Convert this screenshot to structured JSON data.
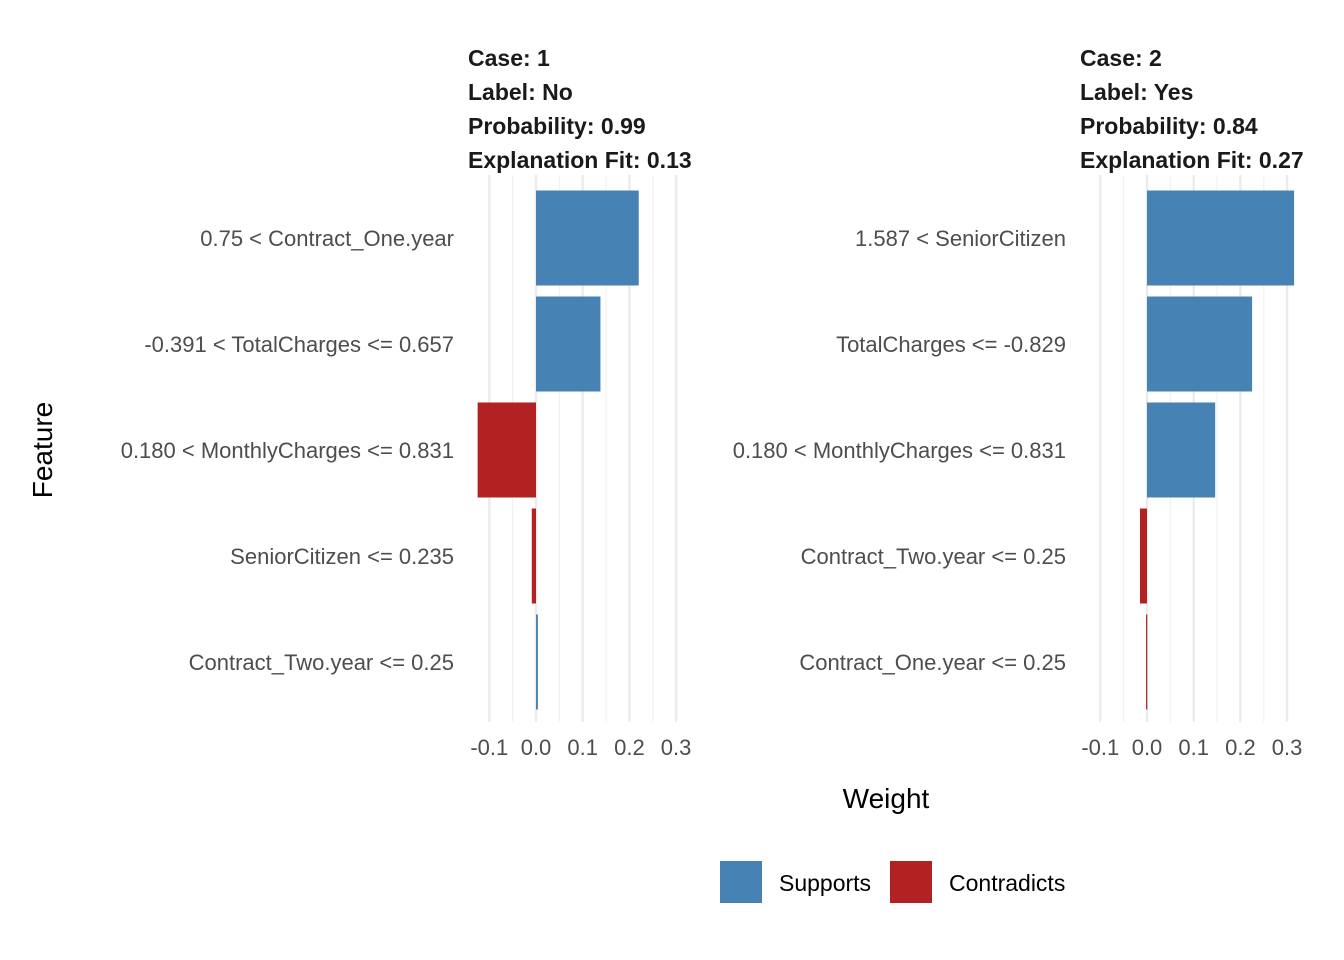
{
  "chart_data": {
    "type": "bar",
    "orientation": "horizontal",
    "ylabel": "Feature",
    "xlabel": "Weight",
    "xlim": [
      -0.12,
      0.32
    ],
    "xticks": [
      "-0.1",
      "0.0",
      "0.1",
      "0.2",
      "0.3"
    ],
    "grid": true,
    "legend": {
      "placement": "bottom",
      "entries": [
        {
          "label": "Supports",
          "color": "#4682B4"
        },
        {
          "label": "Contradicts",
          "color": "#B22222"
        }
      ]
    },
    "panels": [
      {
        "title": [
          "Case: 1",
          "Label: No",
          "Probability: 0.99",
          "Explanation Fit: 0.13"
        ],
        "bars": [
          {
            "feature": "0.75 < Contract_One.year",
            "weight": 0.22,
            "type": "Supports"
          },
          {
            "feature": "-0.391 < TotalCharges <= 0.657",
            "weight": 0.138,
            "type": "Supports"
          },
          {
            "feature": "0.180 < MonthlyCharges <= 0.831",
            "weight": -0.125,
            "type": "Contradicts"
          },
          {
            "feature": "SeniorCitizen <= 0.235",
            "weight": -0.009,
            "type": "Contradicts"
          },
          {
            "feature": "Contract_Two.year <= 0.25",
            "weight": 0.004,
            "type": "Supports"
          }
        ]
      },
      {
        "title": [
          "Case: 2",
          "Label: Yes",
          "Probability: 0.84",
          "Explanation Fit: 0.27"
        ],
        "bars": [
          {
            "feature": "1.587 < SeniorCitizen",
            "weight": 0.315,
            "type": "Supports"
          },
          {
            "feature": "TotalCharges <= -0.829",
            "weight": 0.225,
            "type": "Supports"
          },
          {
            "feature": "0.180 < MonthlyCharges <= 0.831",
            "weight": 0.146,
            "type": "Supports"
          },
          {
            "feature": "Contract_Two.year <= 0.25",
            "weight": -0.015,
            "type": "Contradicts"
          },
          {
            "feature": "Contract_One.year <= 0.25",
            "weight": -0.002,
            "type": "Contradicts"
          }
        ]
      }
    ]
  }
}
